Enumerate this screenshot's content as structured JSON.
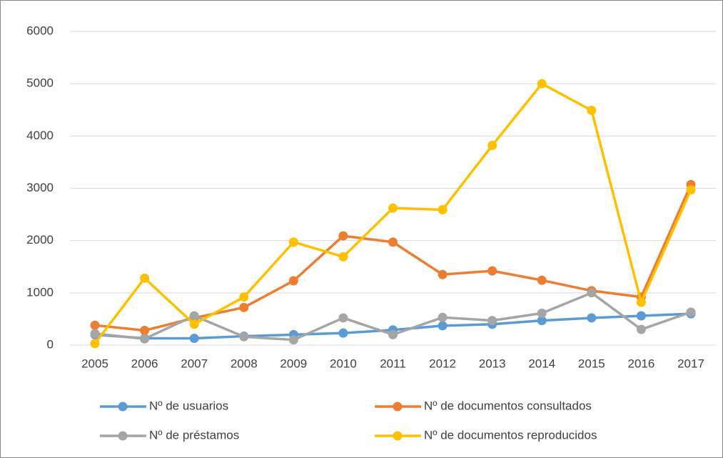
{
  "chart_data": {
    "type": "line",
    "categories": [
      "2005",
      "2006",
      "2007",
      "2008",
      "2009",
      "2010",
      "2011",
      "2012",
      "2013",
      "2014",
      "2015",
      "2016",
      "2017"
    ],
    "series": [
      {
        "name": "Nº de usuarios",
        "color": "#5b9bd5",
        "values": [
          200,
          130,
          130,
          170,
          200,
          230,
          290,
          370,
          400,
          470,
          520,
          560,
          600
        ]
      },
      {
        "name": "Nº de documentos consultados",
        "color": "#ed7d31",
        "values": [
          380,
          280,
          520,
          720,
          1230,
          2090,
          1970,
          1350,
          1420,
          1240,
          1040,
          920,
          3070
        ]
      },
      {
        "name": "Nº de préstamos",
        "color": "#a5a5a5",
        "values": [
          220,
          120,
          560,
          160,
          100,
          520,
          200,
          530,
          470,
          610,
          1000,
          300,
          630
        ]
      },
      {
        "name": "Nº de documentos reproducidos",
        "color": "#ffc000",
        "values": [
          30,
          1280,
          400,
          920,
          1970,
          1690,
          2620,
          2590,
          3820,
          5000,
          4490,
          820,
          2970
        ]
      }
    ],
    "ylim": [
      0,
      6000
    ],
    "yticks": [
      0,
      1000,
      2000,
      3000,
      4000,
      5000,
      6000
    ],
    "grid": true,
    "legend": "bottom"
  }
}
